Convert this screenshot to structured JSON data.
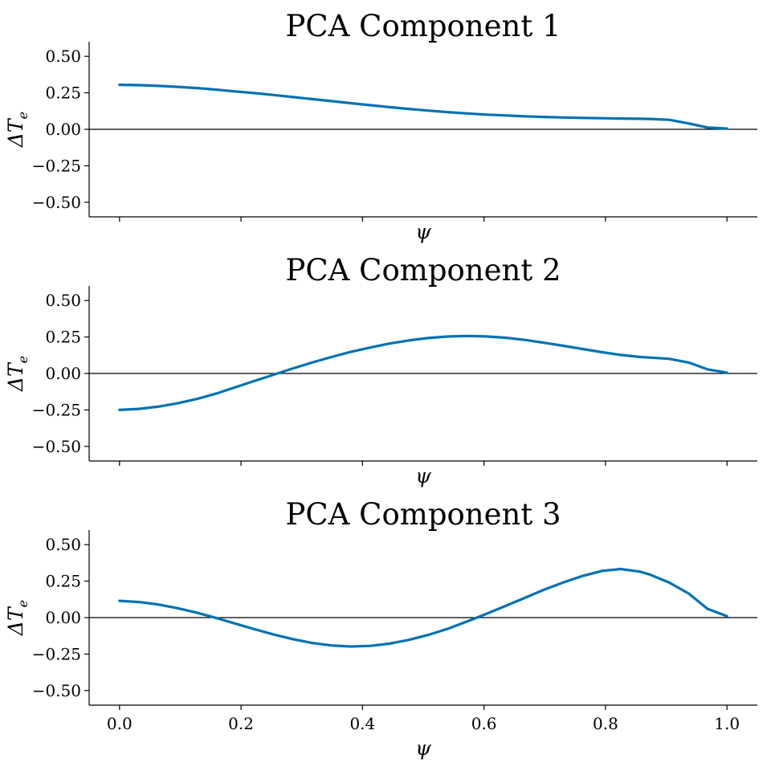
{
  "colors": {
    "series": "#0072b2",
    "axis": "#000000"
  },
  "chart_data": [
    {
      "type": "line",
      "title": "PCA Component 1",
      "xlabel": "ψ",
      "ylabel_base": "ΔT",
      "ylabel_sub": "e",
      "xlim": [
        -0.05,
        1.05
      ],
      "ylim": [
        -0.6,
        0.6
      ],
      "xticks": [
        0.0,
        0.2,
        0.4,
        0.6,
        0.8,
        1.0
      ],
      "xtick_labels": [],
      "yticks": [
        0.5,
        0.25,
        0.0,
        -0.25,
        -0.5
      ],
      "ytick_labels": [
        "0.50",
        "0.25",
        "0.00",
        "−0.25",
        "−0.50"
      ],
      "zero_line": 0.0,
      "grid": false,
      "x": [
        0.0,
        0.032,
        0.063,
        0.095,
        0.127,
        0.159,
        0.19,
        0.222,
        0.254,
        0.286,
        0.317,
        0.349,
        0.381,
        0.413,
        0.444,
        0.476,
        0.508,
        0.54,
        0.571,
        0.603,
        0.635,
        0.667,
        0.698,
        0.73,
        0.762,
        0.794,
        0.825,
        0.857,
        0.873,
        0.905,
        0.937,
        0.968,
        1.0
      ],
      "values": [
        0.305,
        0.303,
        0.298,
        0.291,
        0.283,
        0.272,
        0.26,
        0.248,
        0.235,
        0.221,
        0.207,
        0.193,
        0.179,
        0.165,
        0.152,
        0.14,
        0.128,
        0.118,
        0.109,
        0.101,
        0.095,
        0.089,
        0.085,
        0.081,
        0.078,
        0.076,
        0.074,
        0.072,
        0.071,
        0.065,
        0.04,
        0.012,
        0.005
      ]
    },
    {
      "type": "line",
      "title": "PCA Component 2",
      "xlabel": "ψ",
      "ylabel_base": "ΔT",
      "ylabel_sub": "e",
      "xlim": [
        -0.05,
        1.05
      ],
      "ylim": [
        -0.6,
        0.6
      ],
      "xticks": [
        0.0,
        0.2,
        0.4,
        0.6,
        0.8,
        1.0
      ],
      "xtick_labels": [],
      "yticks": [
        0.5,
        0.25,
        0.0,
        -0.25,
        -0.5
      ],
      "ytick_labels": [
        "0.50",
        "0.25",
        "0.00",
        "−0.25",
        "−0.50"
      ],
      "zero_line": 0.0,
      "grid": false,
      "x": [
        0.0,
        0.032,
        0.063,
        0.095,
        0.127,
        0.159,
        0.19,
        0.222,
        0.254,
        0.286,
        0.317,
        0.349,
        0.381,
        0.413,
        0.444,
        0.476,
        0.508,
        0.54,
        0.571,
        0.603,
        0.635,
        0.667,
        0.698,
        0.73,
        0.762,
        0.794,
        0.825,
        0.857,
        0.873,
        0.905,
        0.937,
        0.968,
        1.0
      ],
      "values": [
        -0.25,
        -0.243,
        -0.228,
        -0.205,
        -0.175,
        -0.138,
        -0.096,
        -0.052,
        -0.008,
        0.035,
        0.075,
        0.113,
        0.148,
        0.178,
        0.205,
        0.226,
        0.243,
        0.253,
        0.257,
        0.254,
        0.245,
        0.23,
        0.211,
        0.19,
        0.168,
        0.146,
        0.127,
        0.113,
        0.109,
        0.1,
        0.075,
        0.028,
        0.005
      ]
    },
    {
      "type": "line",
      "title": "PCA Component 3",
      "xlabel": "ψ",
      "ylabel_base": "ΔT",
      "ylabel_sub": "e",
      "xlim": [
        -0.05,
        1.05
      ],
      "ylim": [
        -0.6,
        0.6
      ],
      "xticks": [
        0.0,
        0.2,
        0.4,
        0.6,
        0.8,
        1.0
      ],
      "xtick_labels": [
        "0.0",
        "0.2",
        "0.4",
        "0.6",
        "0.8",
        "1.0"
      ],
      "yticks": [
        0.5,
        0.25,
        0.0,
        -0.25,
        -0.5
      ],
      "ytick_labels": [
        "0.50",
        "0.25",
        "0.00",
        "−0.25",
        "−0.50"
      ],
      "zero_line": 0.0,
      "grid": false,
      "x": [
        0.0,
        0.032,
        0.063,
        0.095,
        0.127,
        0.159,
        0.19,
        0.222,
        0.254,
        0.286,
        0.317,
        0.349,
        0.381,
        0.413,
        0.444,
        0.476,
        0.508,
        0.54,
        0.571,
        0.603,
        0.635,
        0.667,
        0.698,
        0.73,
        0.762,
        0.794,
        0.825,
        0.857,
        0.873,
        0.905,
        0.937,
        0.968,
        1.0
      ],
      "values": [
        0.115,
        0.107,
        0.09,
        0.065,
        0.034,
        -0.002,
        -0.04,
        -0.079,
        -0.116,
        -0.148,
        -0.174,
        -0.191,
        -0.198,
        -0.194,
        -0.179,
        -0.153,
        -0.119,
        -0.077,
        -0.028,
        0.024,
        0.079,
        0.135,
        0.19,
        0.24,
        0.285,
        0.32,
        0.333,
        0.315,
        0.295,
        0.24,
        0.165,
        0.06,
        0.01
      ]
    }
  ]
}
